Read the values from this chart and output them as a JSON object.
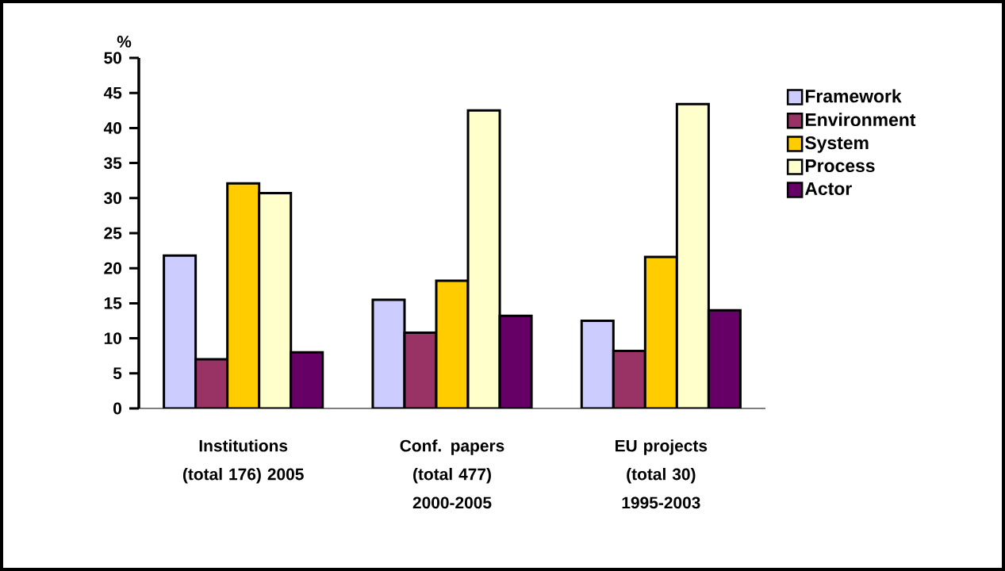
{
  "chart_data": {
    "type": "bar",
    "ylabel": "%",
    "categories": [
      "Institutions (total 176) 2005",
      "Conf. papers (total 477) 2000-2005",
      "EU projects (total 30) 1995-2003"
    ],
    "series": [
      {
        "name": "Framework",
        "color": "#ccccff",
        "values": [
          21.8,
          15.5,
          12.5
        ]
      },
      {
        "name": "Environment",
        "color": "#993366",
        "values": [
          7.0,
          10.8,
          8.2
        ]
      },
      {
        "name": "System",
        "color": "#ffcc00",
        "values": [
          32.1,
          18.2,
          21.6
        ]
      },
      {
        "name": "Process",
        "color": "#ffffcc",
        "values": [
          30.7,
          42.5,
          43.4
        ]
      },
      {
        "name": "Actor",
        "color": "#660066",
        "values": [
          8.0,
          13.2,
          14.0
        ]
      }
    ],
    "ylim": [
      0,
      50
    ],
    "yticks": [
      0,
      5,
      10,
      15,
      20,
      25,
      30,
      35,
      40,
      45,
      50
    ],
    "legend": "right"
  }
}
